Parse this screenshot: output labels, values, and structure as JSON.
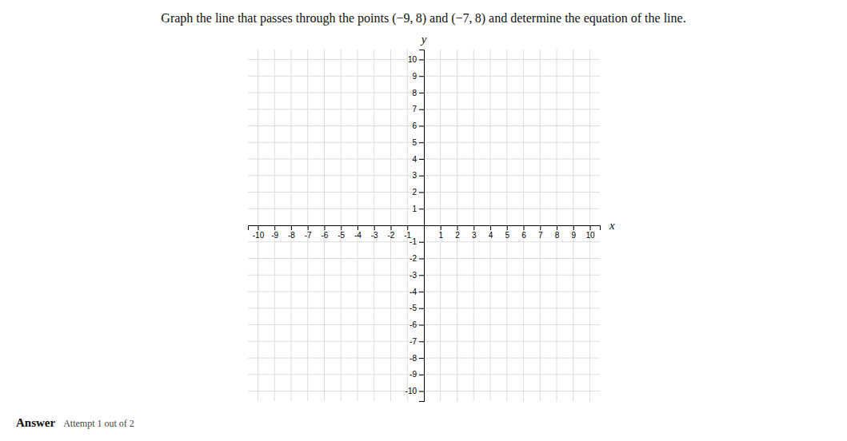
{
  "chart_data": {
    "type": "plane",
    "title": "Graph the line that passes through the points (−9, 8) and (−7, 8) and determine the equation of the line.",
    "x_label": "x",
    "y_label": "y",
    "xlim": [
      -10.6,
      10.6
    ],
    "ylim": [
      -10.6,
      10.6
    ],
    "xticks": [
      -10,
      -9,
      -8,
      -7,
      -6,
      -5,
      -4,
      -3,
      -2,
      -1,
      1,
      2,
      3,
      4,
      5,
      6,
      7,
      8,
      9,
      10
    ],
    "yticks": [
      -10,
      -9,
      -8,
      -7,
      -6,
      -5,
      -4,
      -3,
      -2,
      -1,
      1,
      2,
      3,
      4,
      5,
      6,
      7,
      8,
      9,
      10
    ],
    "grid": true,
    "annotations": [
      "Answer",
      "Attempt 1 out of 2"
    ]
  }
}
